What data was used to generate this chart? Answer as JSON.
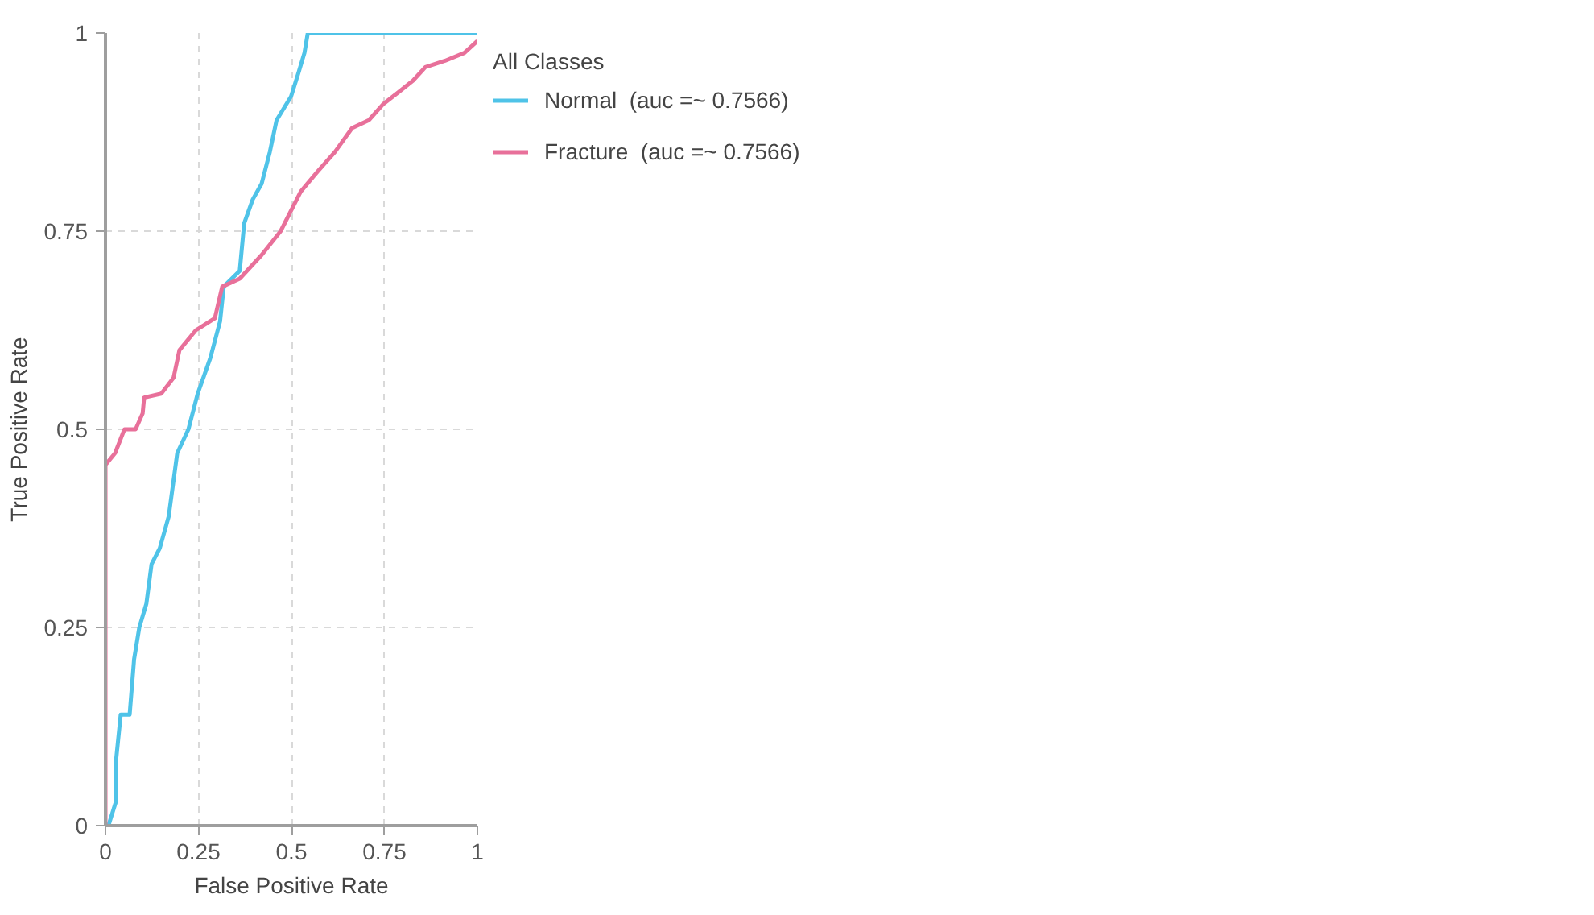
{
  "chart_data": {
    "type": "line",
    "xlabel": "False Positive Rate",
    "ylabel": "True Positive Rate",
    "legend_title": "All Classes",
    "legend": "right",
    "grid": true,
    "marker": "none",
    "line_style": "solid",
    "xlim": [
      0,
      1
    ],
    "ylim": [
      0,
      1
    ],
    "xticks": [
      0,
      0.25,
      0.5,
      0.75,
      1
    ],
    "yticks": [
      0,
      0.25,
      0.5,
      0.75,
      1
    ],
    "series": [
      {
        "name": "Normal  (auc =~ 0.7566)",
        "color": "#4fc3e8",
        "x": [
          0,
          0.008,
          0.028,
          0.028,
          0.041,
          0.065,
          0.077,
          0.091,
          0.11,
          0.124,
          0.146,
          0.17,
          0.193,
          0.223,
          0.248,
          0.282,
          0.308,
          0.318,
          0.361,
          0.373,
          0.396,
          0.42,
          0.442,
          0.46,
          0.499,
          0.519,
          0.535,
          0.544,
          1
        ],
        "values": [
          0,
          0,
          0.03,
          0.08,
          0.14,
          0.14,
          0.21,
          0.25,
          0.28,
          0.33,
          0.35,
          0.39,
          0.47,
          0.5,
          0.545,
          0.59,
          0.636,
          0.68,
          0.7,
          0.76,
          0.79,
          0.81,
          0.85,
          0.89,
          0.92,
          0.95,
          0.975,
          1,
          1
        ]
      },
      {
        "name": "Fracture  (auc =~ 0.7566)",
        "color": "#e8709a",
        "x": [
          0,
          0,
          0.026,
          0.051,
          0.081,
          0.1,
          0.104,
          0.15,
          0.183,
          0.199,
          0.243,
          0.294,
          0.314,
          0.361,
          0.42,
          0.471,
          0.525,
          0.57,
          0.617,
          0.663,
          0.708,
          0.746,
          0.787,
          0.827,
          0.86,
          0.913,
          0.965,
          1
        ],
        "values": [
          0,
          0.455,
          0.47,
          0.5,
          0.5,
          0.52,
          0.54,
          0.545,
          0.565,
          0.6,
          0.625,
          0.64,
          0.68,
          0.69,
          0.72,
          0.75,
          0.8,
          0.825,
          0.85,
          0.88,
          0.89,
          0.91,
          0.925,
          0.94,
          0.957,
          0.965,
          0.975,
          0.99
        ]
      }
    ]
  }
}
